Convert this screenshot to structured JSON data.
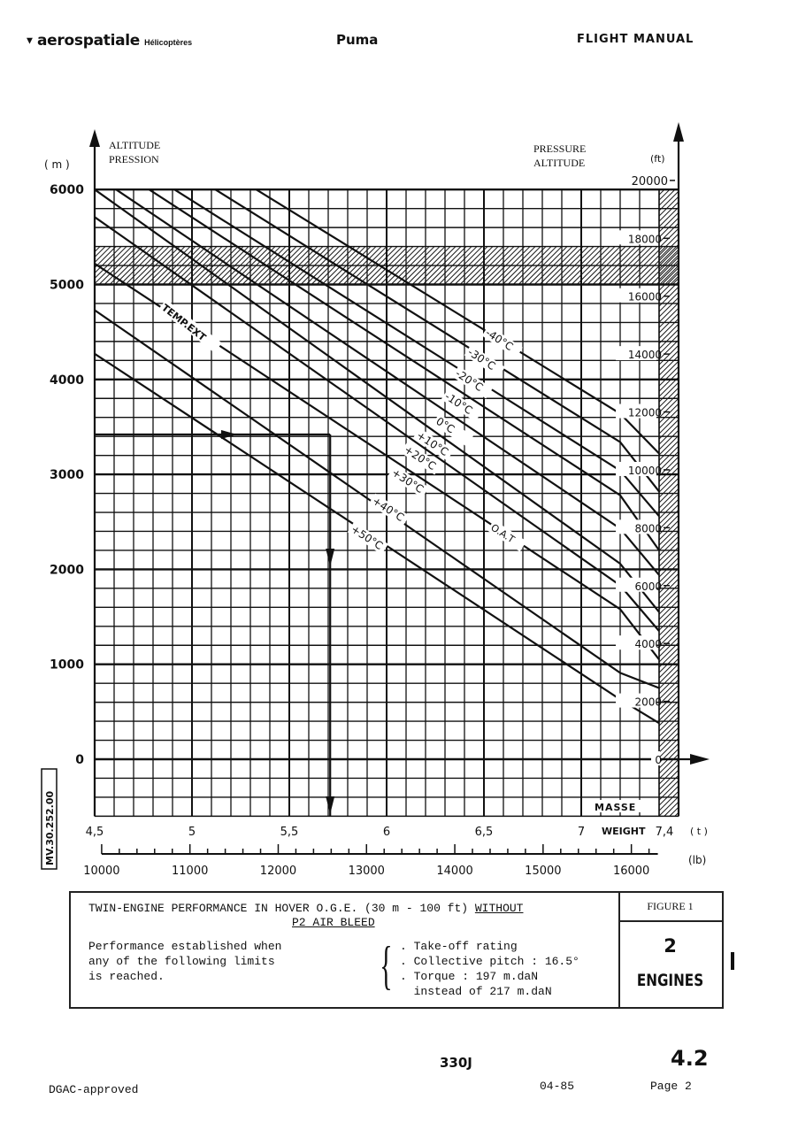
{
  "header": {
    "brand": "aerospatiale",
    "brand_sub": "Hélicoptères",
    "model": "Puma",
    "manual": "FLIGHT MANUAL"
  },
  "chart_data": {
    "type": "line",
    "title": "TWIN-ENGINE PERFORMANCE IN HOVER O.G.E. (30 m - 100 ft) WITHOUT P2 AIR BLEED",
    "ylabel_left": [
      "ALTITUDE",
      "PRESSION"
    ],
    "ylabel_left_unit": "( m )",
    "ylabel_right": [
      "PRESSURE",
      "ALTITUDE"
    ],
    "ylabel_right_unit": "(ft)",
    "xlabel_t": "WEIGHT",
    "xlabel_t_fr": "MASSE",
    "xlabel_t_unit": "( t )",
    "xlabel_lb_unit": "(lb)",
    "xlim_t": [
      4.5,
      7.5
    ],
    "ylim_m": [
      -600,
      6000
    ],
    "grid": true,
    "y_ticks_m": [
      0,
      1000,
      2000,
      3000,
      4000,
      5000,
      6000
    ],
    "y_ticks_ft": [
      0,
      2000,
      4000,
      6000,
      8000,
      10000,
      12000,
      14000,
      16000,
      18000,
      20000
    ],
    "x_ticks_t": [
      "4,5",
      "5",
      "5,5",
      "6",
      "6,5",
      "7",
      "7,4"
    ],
    "x_ticks_t_values": [
      4.5,
      5,
      5.5,
      6,
      6.5,
      7,
      7.4
    ],
    "x_ticks_lb": [
      10000,
      11000,
      12000,
      13000,
      14000,
      15000,
      16000
    ],
    "hatched_band_m": [
      5000,
      5400
    ],
    "hatched_weight_t": [
      7.4,
      7.5
    ],
    "curve_label_prefix": "TEMP.EXT",
    "curve_label_suffix": "O.A.T",
    "series": [
      {
        "name": "-40°C",
        "points": [
          [
            5.33,
            6000
          ],
          [
            7.2,
            3640
          ],
          [
            7.4,
            3220
          ]
        ]
      },
      {
        "name": "-30°C",
        "points": [
          [
            5.12,
            6000
          ],
          [
            7.2,
            3340
          ],
          [
            7.4,
            2820
          ]
        ]
      },
      {
        "name": "-20°C",
        "points": [
          [
            4.91,
            6000
          ],
          [
            7.2,
            3040
          ],
          [
            7.4,
            2560
          ]
        ]
      },
      {
        "name": "-10°C",
        "points": [
          [
            4.78,
            6000
          ],
          [
            7.2,
            2780
          ],
          [
            7.4,
            2200
          ]
        ]
      },
      {
        "name": "0°C",
        "points": [
          [
            4.61,
            6000
          ],
          [
            7.2,
            2430
          ],
          [
            7.4,
            1940
          ]
        ]
      },
      {
        "name": "+10°C",
        "points": [
          [
            4.5,
            6000
          ],
          [
            7.2,
            2060
          ],
          [
            7.4,
            1550
          ]
        ]
      },
      {
        "name": "+20°C",
        "points": [
          [
            4.5,
            5710
          ],
          [
            7.2,
            1830
          ],
          [
            7.4,
            1350
          ]
        ]
      },
      {
        "name": "+30°C",
        "points": [
          [
            4.5,
            5220
          ],
          [
            7.2,
            1580
          ],
          [
            7.4,
            1050
          ]
        ]
      },
      {
        "name": "+40°C",
        "points": [
          [
            4.5,
            4730
          ],
          [
            7.2,
            910
          ],
          [
            7.4,
            750
          ]
        ]
      },
      {
        "name": "+50°C",
        "points": [
          [
            4.5,
            4270
          ],
          [
            7.2,
            630
          ],
          [
            7.4,
            380
          ]
        ]
      }
    ],
    "example": {
      "altitude_m": 3420,
      "weight_t": 5.71
    }
  },
  "stamp": "MV.30.252.00",
  "caption": {
    "title": "TWIN-ENGINE PERFORMANCE IN HOVER O.G.E. (30 m - 100 ft) ",
    "title_underlined": "WITHOUT",
    "title_line2": "P2 AIR BLEED",
    "left_text": "Performance established when\nany of the following limits\nis reached.",
    "limits": [
      ". Take-off rating",
      ". Collective pitch : 16.5°",
      ". Torque : 197 m.daN",
      "  instead of 217 m.daN"
    ],
    "figure": "FIGURE  1",
    "engines_count": "2",
    "engines_label": "ENGINES"
  },
  "footer": {
    "model": "330J",
    "section": "4.2",
    "approval": "DGAC-approved",
    "date": "04-85",
    "page": "Page 2"
  }
}
